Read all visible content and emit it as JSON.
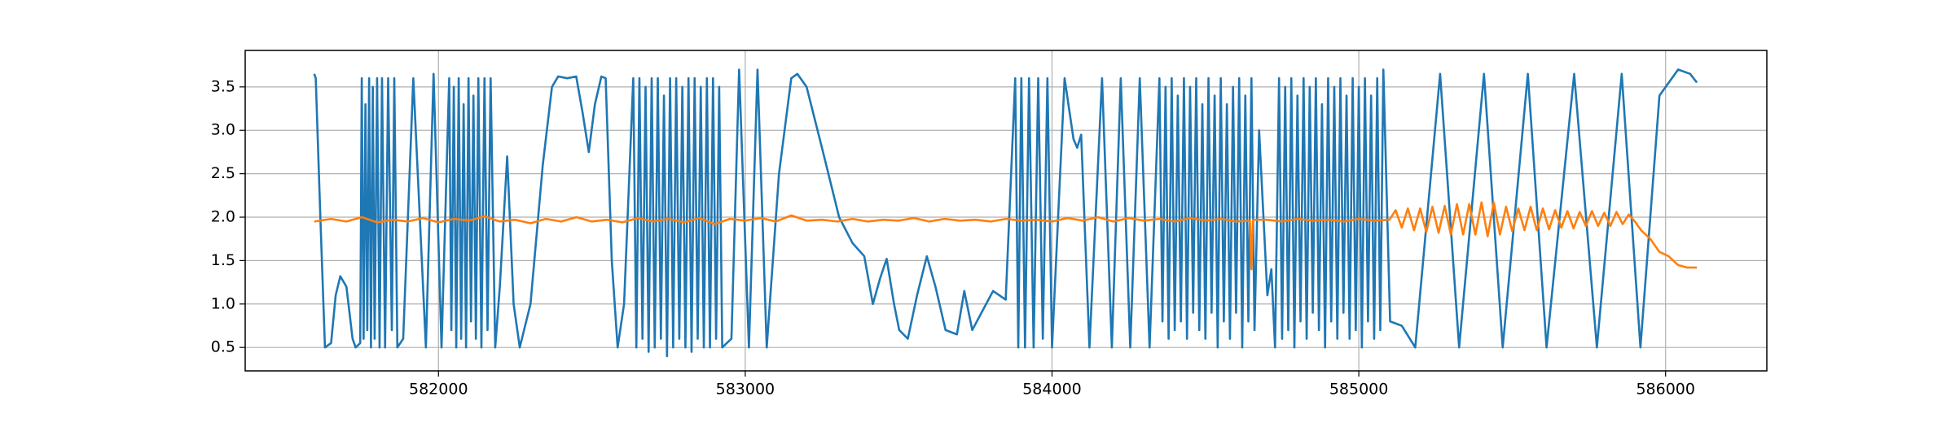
{
  "chart_data": {
    "type": "line",
    "grid": true,
    "xlim": [
      581370,
      586330
    ],
    "ylim": [
      0.23,
      3.92
    ],
    "xticks": [
      582000,
      583000,
      584000,
      585000,
      586000
    ],
    "yticks": [
      0.5,
      {
        "value": 1,
        "label": "1.0"
      },
      1.5,
      {
        "value": 2,
        "label": "2.0"
      },
      2.5,
      {
        "value": 3,
        "label": "3.0"
      },
      3.5
    ],
    "series": [
      {
        "color": "#1f77b4",
        "x": [
          581595,
          581600,
          581615,
          581630,
          581650,
          581665,
          581680,
          581700,
          581720,
          581730,
          581745,
          581750,
          581756,
          581762,
          581768,
          581774,
          581780,
          581786,
          581792,
          581800,
          581808,
          581816,
          581826,
          581836,
          581848,
          581856,
          581866,
          581885,
          581918,
          581959,
          581984,
          582010,
          582035,
          582042,
          582050,
          582058,
          582066,
          582074,
          582082,
          582090,
          582098,
          582106,
          582114,
          582122,
          582130,
          582140,
          582150,
          582160,
          582170,
          582185,
          582200,
          582224,
          582245,
          582265,
          582300,
          582340,
          582370,
          582390,
          582420,
          582449,
          582470,
          582490,
          582510,
          582531,
          582545,
          582565,
          582584,
          582605,
          582635,
          582645,
          582655,
          582665,
          582675,
          582685,
          582695,
          582705,
          582715,
          582725,
          582735,
          582745,
          582755,
          582765,
          582775,
          582785,
          582795,
          582805,
          582815,
          582825,
          582835,
          582845,
          582855,
          582865,
          582875,
          582885,
          582895,
          582905,
          582915,
          582925,
          582955,
          582980,
          583012,
          583040,
          583070,
          583110,
          583150,
          583170,
          583200,
          583250,
          583306,
          583350,
          583388,
          583416,
          583440,
          583461,
          583485,
          583502,
          583530,
          583560,
          583592,
          583620,
          583653,
          583690,
          583714,
          583740,
          583770,
          583808,
          583849,
          583880,
          583890,
          583900,
          583912,
          583925,
          583940,
          583955,
          583970,
          583985,
          584000,
          584041,
          584070,
          584082,
          584095,
          584122,
          584163,
          584195,
          584224,
          584255,
          584286,
          584318,
          584350,
          584360,
          584370,
          584380,
          584390,
          584400,
          584410,
          584420,
          584430,
          584440,
          584450,
          584460,
          584470,
          584480,
          584490,
          584500,
          584510,
          584520,
          584530,
          584540,
          584550,
          584560,
          584570,
          584580,
          584590,
          584600,
          584610,
          584620,
          584630,
          584640,
          584650,
          584660,
          584675,
          584702,
          584715,
          584727,
          584740,
          584750,
          584760,
          584770,
          584780,
          584790,
          584800,
          584810,
          584820,
          584830,
          584840,
          584850,
          584860,
          584870,
          584880,
          584890,
          584900,
          584910,
          584920,
          584930,
          584940,
          584950,
          584960,
          584970,
          584980,
          584990,
          585000,
          585010,
          585020,
          585030,
          585040,
          585050,
          585060,
          585070,
          585080,
          585102,
          585140,
          585184,
          585265,
          585327,
          585408,
          585469,
          585551,
          585612,
          585702,
          585776,
          585857,
          585918,
          585980,
          586041,
          586080,
          586102
        ],
        "values": [
          3.65,
          3.6,
          2.0,
          0.5,
          0.55,
          1.1,
          1.32,
          1.2,
          0.6,
          0.5,
          0.55,
          3.6,
          0.6,
          3.3,
          0.7,
          3.6,
          0.5,
          3.5,
          0.6,
          3.6,
          0.5,
          3.6,
          0.5,
          3.6,
          0.7,
          3.6,
          0.5,
          0.6,
          3.6,
          0.5,
          3.65,
          0.5,
          3.6,
          0.7,
          3.5,
          0.5,
          3.6,
          0.6,
          3.3,
          0.5,
          3.6,
          0.8,
          3.4,
          0.6,
          3.6,
          0.5,
          3.6,
          0.7,
          3.6,
          0.5,
          1.2,
          2.7,
          1.0,
          0.5,
          1.0,
          2.6,
          3.5,
          3.62,
          3.6,
          3.62,
          3.2,
          2.75,
          3.3,
          3.62,
          3.6,
          1.5,
          0.5,
          1.0,
          3.6,
          0.5,
          3.6,
          0.6,
          3.5,
          0.45,
          3.6,
          0.5,
          3.6,
          0.6,
          3.4,
          0.4,
          3.6,
          0.5,
          3.6,
          0.6,
          3.5,
          0.5,
          3.6,
          0.45,
          3.6,
          0.6,
          3.5,
          0.5,
          3.6,
          0.5,
          3.6,
          0.6,
          3.5,
          0.5,
          0.6,
          3.7,
          0.5,
          3.7,
          0.5,
          2.5,
          3.6,
          3.65,
          3.5,
          2.8,
          2.0,
          1.7,
          1.55,
          1.0,
          1.3,
          1.52,
          1.0,
          0.7,
          0.6,
          1.1,
          1.55,
          1.2,
          0.7,
          0.65,
          1.15,
          0.7,
          0.9,
          1.15,
          1.05,
          3.6,
          0.5,
          3.6,
          0.5,
          3.6,
          0.5,
          3.6,
          0.6,
          3.6,
          0.5,
          3.6,
          2.9,
          2.8,
          2.95,
          0.5,
          3.6,
          0.5,
          3.6,
          0.5,
          3.6,
          0.5,
          3.6,
          0.8,
          3.5,
          0.6,
          3.6,
          0.7,
          3.4,
          0.8,
          3.6,
          0.6,
          3.5,
          0.9,
          3.6,
          0.7,
          3.3,
          0.6,
          3.6,
          0.9,
          3.4,
          0.5,
          3.6,
          0.8,
          3.3,
          0.6,
          3.5,
          0.9,
          3.6,
          0.5,
          3.4,
          0.8,
          3.6,
          0.7,
          3.0,
          1.1,
          1.4,
          0.5,
          3.6,
          0.6,
          3.5,
          0.7,
          3.6,
          0.5,
          3.4,
          0.8,
          3.6,
          0.6,
          3.5,
          0.9,
          3.6,
          0.7,
          3.3,
          0.5,
          3.6,
          0.8,
          3.5,
          0.6,
          3.6,
          0.9,
          3.4,
          0.6,
          3.6,
          0.7,
          3.5,
          0.5,
          3.6,
          0.8,
          3.4,
          0.6,
          3.6,
          0.7,
          3.7,
          0.8,
          0.75,
          0.5,
          3.65,
          0.5,
          3.65,
          0.5,
          3.65,
          0.5,
          3.65,
          0.5,
          3.65,
          0.5,
          3.4,
          3.7,
          3.65,
          3.55
        ]
      },
      {
        "color": "#ff7f0e",
        "x": [
          581595,
          581650,
          581700,
          581750,
          581800,
          581850,
          581900,
          581950,
          582000,
          582050,
          582100,
          582150,
          582200,
          582250,
          582300,
          582350,
          582400,
          582450,
          582500,
          582550,
          582600,
          582650,
          582700,
          582750,
          582800,
          582850,
          582900,
          582950,
          583000,
          583050,
          583100,
          583150,
          583200,
          583250,
          583300,
          583350,
          583400,
          583450,
          583500,
          583550,
          583600,
          583650,
          583700,
          583750,
          583800,
          583850,
          583900,
          583950,
          584000,
          584050,
          584100,
          584150,
          584200,
          584250,
          584300,
          584350,
          584400,
          584450,
          584500,
          584550,
          584600,
          584645,
          584650,
          584655,
          584700,
          584750,
          584800,
          584850,
          584900,
          584950,
          585000,
          585050,
          585100,
          585120,
          585140,
          585160,
          585180,
          585200,
          585220,
          585240,
          585260,
          585280,
          585300,
          585320,
          585340,
          585360,
          585380,
          585400,
          585420,
          585440,
          585460,
          585480,
          585500,
          585520,
          585540,
          585560,
          585580,
          585600,
          585620,
          585640,
          585660,
          585680,
          585700,
          585720,
          585740,
          585760,
          585780,
          585800,
          585820,
          585840,
          585860,
          585880,
          585900,
          585920,
          585950,
          585980,
          586010,
          586040,
          586070,
          586102
        ],
        "values": [
          1.95,
          1.98,
          1.95,
          2.0,
          1.94,
          1.97,
          1.95,
          1.99,
          1.94,
          1.98,
          1.96,
          2.01,
          1.95,
          1.97,
          1.93,
          1.98,
          1.95,
          2.0,
          1.95,
          1.97,
          1.94,
          1.99,
          1.95,
          1.98,
          1.94,
          1.99,
          1.92,
          1.98,
          1.96,
          1.99,
          1.95,
          2.02,
          1.96,
          1.97,
          1.95,
          1.98,
          1.95,
          1.97,
          1.96,
          1.99,
          1.95,
          1.98,
          1.96,
          1.97,
          1.95,
          1.98,
          1.96,
          1.97,
          1.95,
          1.99,
          1.96,
          2.0,
          1.95,
          1.99,
          1.96,
          1.98,
          1.95,
          1.99,
          1.96,
          1.98,
          1.95,
          1.96,
          1.4,
          1.97,
          1.97,
          1.95,
          1.98,
          1.96,
          1.97,
          1.95,
          1.98,
          1.96,
          1.97,
          2.08,
          1.88,
          2.1,
          1.85,
          2.1,
          1.83,
          2.12,
          1.82,
          2.13,
          1.8,
          2.15,
          1.8,
          2.15,
          1.8,
          2.17,
          1.78,
          2.17,
          1.8,
          2.12,
          1.84,
          2.1,
          1.85,
          2.12,
          1.85,
          2.1,
          1.86,
          2.08,
          1.88,
          2.07,
          1.87,
          2.06,
          1.9,
          2.07,
          1.9,
          2.05,
          1.9,
          2.06,
          1.92,
          2.03,
          1.95,
          1.85,
          1.75,
          1.6,
          1.55,
          1.45,
          1.42,
          1.42
        ]
      }
    ]
  }
}
